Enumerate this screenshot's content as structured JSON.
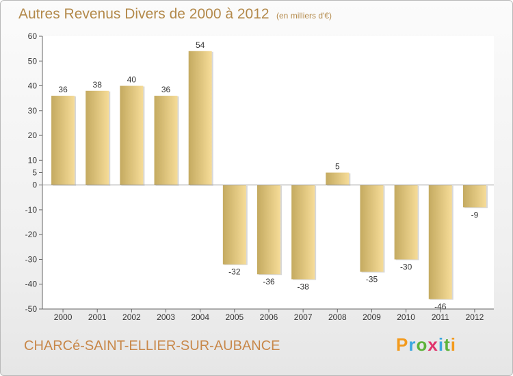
{
  "page": {
    "title": "Autres Revenus Divers de 2000 à 2012",
    "title_unit": "(en milliers d'€)",
    "place_name": "CHARCé-SAINT-ELLIER-SUR-AUBANCE",
    "logo": {
      "letters": [
        "P",
        "r",
        "o",
        "x",
        "i",
        "t",
        "i"
      ]
    }
  },
  "colors": {
    "title": "#b3894a",
    "bar_dark": "#c4aa60",
    "bar_light": "#f6dc98",
    "logo": [
      "#f39a1c",
      "#3ba7e0",
      "#5db23a",
      "#e0336b",
      "#3ba7e0",
      "#5db23a",
      "#f39a1c"
    ]
  },
  "chart_data": {
    "type": "bar",
    "title": "Autres Revenus Divers de 2000 à 2012",
    "subtitle": "(en milliers d'€)",
    "categories": [
      "2000",
      "2001",
      "2002",
      "2003",
      "2004",
      "2005",
      "2006",
      "2007",
      "2008",
      "2009",
      "2010",
      "2011",
      "2012"
    ],
    "values": [
      36,
      38,
      40,
      36,
      54,
      -32,
      -36,
      -38,
      5,
      -35,
      -30,
      -46,
      -9
    ],
    "ylim": [
      -50,
      60
    ],
    "yticks": [
      -50,
      -40,
      -30,
      -20,
      -10,
      0,
      5,
      10,
      20,
      30,
      40,
      50,
      60
    ],
    "grid": false,
    "legend": "none"
  }
}
